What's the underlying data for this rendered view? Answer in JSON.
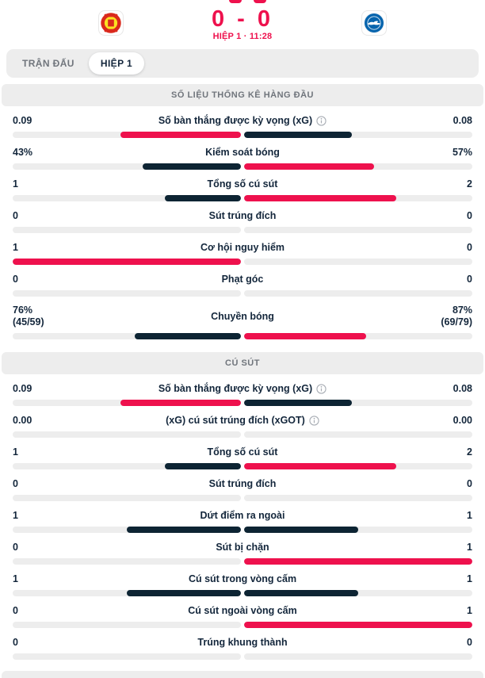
{
  "header": {
    "score": "0 - 0",
    "status": "HIỆP 1 · 11:28"
  },
  "tabs": [
    {
      "label": "TRẬN ĐẤU",
      "active": false
    },
    {
      "label": "HIỆP 1",
      "active": true
    }
  ],
  "colors": {
    "red": "#ee114d",
    "navy": "#0d2433",
    "track": "#ededed",
    "text_dark": "#13263b",
    "text_muted": "#70757c"
  },
  "icons": {
    "home_logo": "manchester-united-crest",
    "away_logo": "brighton-crest",
    "info": "info-circle-icon"
  },
  "sections": [
    {
      "title": "SỐ LIỆU THỐNG KÊ HÀNG ĐẦU",
      "rows": [
        {
          "label": "Số bàn thắng được kỳ vọng (xG)",
          "info": true,
          "home": "0.09",
          "away": "0.08",
          "home_pct": 52.9,
          "away_pct": 47.1,
          "home_color": "red",
          "away_color": "navy"
        },
        {
          "label": "Kiểm soát bóng",
          "info": false,
          "home": "43%",
          "away": "57%",
          "home_pct": 43,
          "away_pct": 57,
          "home_color": "navy",
          "away_color": "red"
        },
        {
          "label": "Tổng số cú sút",
          "info": false,
          "home": "1",
          "away": "2",
          "home_pct": 33.3,
          "away_pct": 66.7,
          "home_color": "navy",
          "away_color": "red"
        },
        {
          "label": "Sút trúng đích",
          "info": false,
          "home": "0",
          "away": "0",
          "home_pct": 0,
          "away_pct": 0,
          "home_color": null,
          "away_color": null
        },
        {
          "label": "Cơ hội nguy hiểm",
          "info": false,
          "home": "1",
          "away": "0",
          "home_pct": 100,
          "away_pct": 0,
          "home_color": "red",
          "away_color": null
        },
        {
          "label": "Phạt góc",
          "info": false,
          "home": "0",
          "away": "0",
          "home_pct": 0,
          "away_pct": 0,
          "home_color": null,
          "away_color": null
        },
        {
          "label": "Chuyền bóng",
          "info": false,
          "home": "76%",
          "home_sub": "(45/59)",
          "away": "87%",
          "away_sub": "(69/79)",
          "home_pct": 46.6,
          "away_pct": 53.4,
          "home_color": "navy",
          "away_color": "red"
        }
      ]
    },
    {
      "title": "CÚ SÚT",
      "rows": [
        {
          "label": "Số bàn thắng được kỳ vọng (xG)",
          "info": true,
          "home": "0.09",
          "away": "0.08",
          "home_pct": 52.9,
          "away_pct": 47.1,
          "home_color": "red",
          "away_color": "navy"
        },
        {
          "label": "(xG) cú sút trúng đích (xGOT)",
          "info": true,
          "home": "0.00",
          "away": "0.00",
          "home_pct": 0,
          "away_pct": 0,
          "home_color": null,
          "away_color": null
        },
        {
          "label": "Tổng số cú sút",
          "info": false,
          "home": "1",
          "away": "2",
          "home_pct": 33.3,
          "away_pct": 66.7,
          "home_color": "navy",
          "away_color": "red"
        },
        {
          "label": "Sút trúng đích",
          "info": false,
          "home": "0",
          "away": "0",
          "home_pct": 0,
          "away_pct": 0,
          "home_color": null,
          "away_color": null
        },
        {
          "label": "Dứt điểm ra ngoài",
          "info": false,
          "home": "1",
          "away": "1",
          "home_pct": 50,
          "away_pct": 50,
          "home_color": "navy",
          "away_color": "navy"
        },
        {
          "label": "Sút bị chặn",
          "info": false,
          "home": "0",
          "away": "1",
          "home_pct": 0,
          "away_pct": 100,
          "home_color": null,
          "away_color": "red"
        },
        {
          "label": "Cú sút trong vòng cấm",
          "info": false,
          "home": "1",
          "away": "1",
          "home_pct": 50,
          "away_pct": 50,
          "home_color": "navy",
          "away_color": "navy"
        },
        {
          "label": "Cú sút ngoài vòng cấm",
          "info": false,
          "home": "0",
          "away": "1",
          "home_pct": 0,
          "away_pct": 100,
          "home_color": null,
          "away_color": "red"
        },
        {
          "label": "Trúng khung thành",
          "info": false,
          "home": "0",
          "away": "0",
          "home_pct": 0,
          "away_pct": 0,
          "home_color": null,
          "away_color": null
        }
      ]
    }
  ]
}
